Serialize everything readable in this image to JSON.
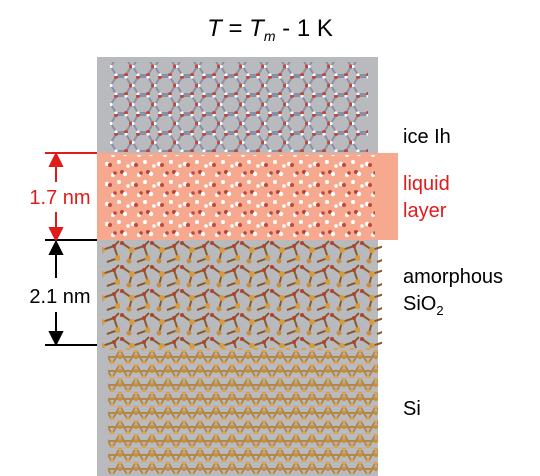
{
  "title": {
    "parts": [
      "T",
      " = ",
      "T",
      "m",
      " - 1 K"
    ]
  },
  "labels": {
    "ice": "ice Ih",
    "liquid": [
      "liquid",
      "layer"
    ],
    "amorphous": "amorphous",
    "sio2": [
      "SiO",
      "2"
    ],
    "si": "Si"
  },
  "dimensions": {
    "liquid": "1.7 nm",
    "oxide": "2.1 nm"
  }
}
